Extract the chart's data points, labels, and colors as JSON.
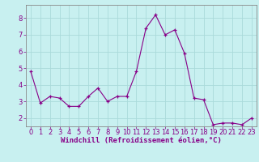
{
  "x": [
    0,
    1,
    2,
    3,
    4,
    5,
    6,
    7,
    8,
    9,
    10,
    11,
    12,
    13,
    14,
    15,
    16,
    17,
    18,
    19,
    20,
    21,
    22,
    23
  ],
  "y": [
    4.8,
    2.9,
    3.3,
    3.2,
    2.7,
    2.7,
    3.3,
    3.8,
    3.0,
    3.3,
    3.3,
    4.8,
    7.4,
    8.2,
    7.0,
    7.3,
    5.9,
    3.2,
    3.1,
    1.6,
    1.7,
    1.7,
    1.6,
    2.0
  ],
  "line_color": "#880088",
  "marker": "+",
  "bg_color": "#c8f0f0",
  "grid_color": "#aadada",
  "xlabel": "Windchill (Refroidissement éolien,°C)",
  "ylim": [
    1.5,
    8.8
  ],
  "xlim": [
    -0.5,
    23.5
  ],
  "yticks": [
    2,
    3,
    4,
    5,
    6,
    7,
    8
  ],
  "xticks": [
    0,
    1,
    2,
    3,
    4,
    5,
    6,
    7,
    8,
    9,
    10,
    11,
    12,
    13,
    14,
    15,
    16,
    17,
    18,
    19,
    20,
    21,
    22,
    23
  ],
  "spine_color": "#888888",
  "tick_color": "#880088",
  "label_color": "#880088",
  "font_size_xlabel": 6.5,
  "font_size_tick": 6.0
}
